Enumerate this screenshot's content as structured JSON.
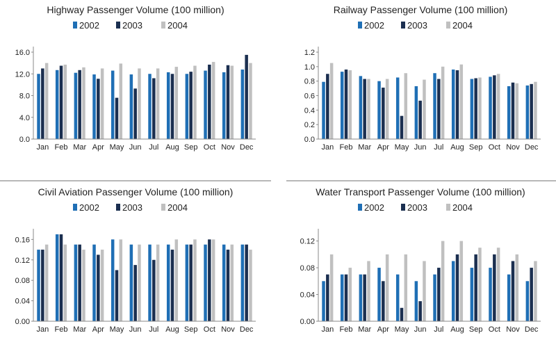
{
  "colors": {
    "2002": "#1f6fb5",
    "2003": "#1b2f50",
    "2004": "#c0c0c0"
  },
  "chart_data": [
    {
      "type": "bar",
      "title": "Highway Passenger Volume (100 million)",
      "categories": [
        "Jan",
        "Feb",
        "Mar",
        "Apr",
        "May",
        "Jun",
        "Jul",
        "Aug",
        "Sep",
        "Oct",
        "Nov",
        "Dec"
      ],
      "series": [
        {
          "name": "2002",
          "values": [
            12.0,
            12.7,
            12.2,
            11.9,
            12.6,
            11.9,
            12.0,
            12.3,
            12.0,
            12.6,
            12.3,
            12.8
          ]
        },
        {
          "name": "2003",
          "values": [
            13.0,
            13.5,
            12.7,
            11.1,
            7.6,
            9.3,
            11.2,
            12.0,
            12.4,
            13.7,
            13.6,
            15.5
          ]
        },
        {
          "name": "2004",
          "values": [
            14.0,
            13.7,
            13.2,
            13.0,
            13.9,
            13.0,
            13.0,
            13.3,
            13.5,
            14.2,
            13.5,
            14.0
          ]
        }
      ],
      "yticks": [
        "0.0",
        "4.0",
        "8.0",
        "12.0",
        "16.0"
      ],
      "ylim": [
        0,
        16
      ],
      "grid": false,
      "legend": "top"
    },
    {
      "type": "bar",
      "title": "Railway Passenger Volume (100 million)",
      "categories": [
        "Jan",
        "Feb",
        "Mar",
        "Apr",
        "May",
        "Jun",
        "Jul",
        "Aug",
        "Sep",
        "Oct",
        "Nov",
        "Dec"
      ],
      "series": [
        {
          "name": "2002",
          "values": [
            0.79,
            0.93,
            0.87,
            0.8,
            0.85,
            0.73,
            0.91,
            0.96,
            0.83,
            0.86,
            0.73,
            0.74
          ]
        },
        {
          "name": "2003",
          "values": [
            0.9,
            0.96,
            0.83,
            0.71,
            0.32,
            0.53,
            0.83,
            0.95,
            0.84,
            0.88,
            0.78,
            0.76
          ]
        },
        {
          "name": "2004",
          "values": [
            1.05,
            0.95,
            0.83,
            0.83,
            0.91,
            0.82,
            1.0,
            1.03,
            0.85,
            0.9,
            0.77,
            0.79
          ]
        }
      ],
      "yticks": [
        "0.0",
        "0.2",
        "0.4",
        "0.6",
        "0.8",
        "1.0",
        "1.2"
      ],
      "ylim": [
        0,
        1.2
      ],
      "grid": false,
      "legend": "top"
    },
    {
      "type": "bar",
      "title": "Civil Aviation Passenger Volume (100 million)",
      "categories": [
        "Jan",
        "Feb",
        "Mar",
        "Apr",
        "May",
        "Jun",
        "Jul",
        "Aug",
        "Sep",
        "Oct",
        "Nov",
        "Dec"
      ],
      "series": [
        {
          "name": "2002",
          "values": [
            0.14,
            0.17,
            0.15,
            0.15,
            0.16,
            0.15,
            0.15,
            0.15,
            0.15,
            0.15,
            0.15,
            0.15
          ]
        },
        {
          "name": "2003",
          "values": [
            0.14,
            0.17,
            0.15,
            0.13,
            0.1,
            0.11,
            0.12,
            0.14,
            0.15,
            0.16,
            0.14,
            0.15
          ]
        },
        {
          "name": "2004",
          "values": [
            0.15,
            0.15,
            0.14,
            0.14,
            0.16,
            0.15,
            0.15,
            0.16,
            0.16,
            0.16,
            0.15,
            0.14
          ]
        }
      ],
      "yticks": [
        "0.00",
        "0.04",
        "0.08",
        "0.12",
        "0.16"
      ],
      "ylim": [
        0,
        0.17
      ],
      "grid": false,
      "legend": "top"
    },
    {
      "type": "bar",
      "title": "Water Transport Passenger Volume (100 million)",
      "categories": [
        "Jan",
        "Feb",
        "Mar",
        "Apr",
        "May",
        "Jun",
        "Jul",
        "Aug",
        "Sep",
        "Oct",
        "Nov",
        "Dec"
      ],
      "series": [
        {
          "name": "2002",
          "values": [
            0.06,
            0.07,
            0.07,
            0.08,
            0.07,
            0.06,
            0.07,
            0.09,
            0.08,
            0.08,
            0.07,
            0.06
          ]
        },
        {
          "name": "2003",
          "values": [
            0.07,
            0.07,
            0.07,
            0.06,
            0.02,
            0.03,
            0.08,
            0.1,
            0.1,
            0.1,
            0.09,
            0.08
          ]
        },
        {
          "name": "2004",
          "values": [
            0.1,
            0.08,
            0.09,
            0.1,
            0.1,
            0.09,
            0.12,
            0.12,
            0.11,
            0.11,
            0.1,
            0.09
          ]
        }
      ],
      "yticks": [
        "0.00",
        "0.04",
        "0.08",
        "0.12"
      ],
      "ylim": [
        0,
        0.13
      ],
      "grid": false,
      "legend": "top"
    }
  ]
}
